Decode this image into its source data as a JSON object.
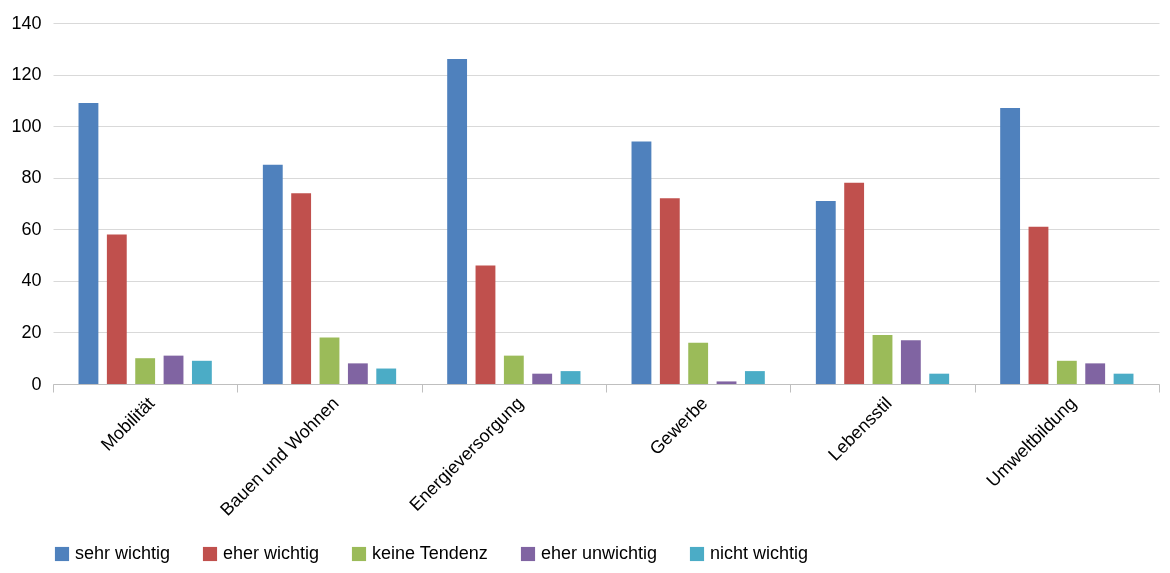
{
  "chart_data": {
    "type": "bar",
    "categories": [
      "Mobilität",
      "Bauen und Wohnen",
      "Energieversorgung",
      "Gewerbe",
      "Lebensstil",
      "Umweltbildung"
    ],
    "series": [
      {
        "name": "sehr wichtig",
        "color": "#4f81bd",
        "values": [
          109,
          85,
          126,
          94,
          71,
          107
        ]
      },
      {
        "name": "eher wichtig",
        "color": "#c0504d",
        "values": [
          58,
          74,
          46,
          72,
          78,
          61
        ]
      },
      {
        "name": "keine Tendenz",
        "color": "#9bbb59",
        "values": [
          10,
          18,
          11,
          16,
          19,
          9
        ]
      },
      {
        "name": "eher unwichtig",
        "color": "#8064a2",
        "values": [
          11,
          8,
          4,
          1,
          17,
          8
        ]
      },
      {
        "name": "nicht wichtig",
        "color": "#4bacc6",
        "values": [
          9,
          6,
          5,
          5,
          4,
          4
        ]
      }
    ],
    "ylim": [
      0,
      140
    ],
    "yticks": [
      0,
      20,
      40,
      60,
      80,
      100,
      120,
      140
    ],
    "grid": "y",
    "legend": "bottom"
  }
}
